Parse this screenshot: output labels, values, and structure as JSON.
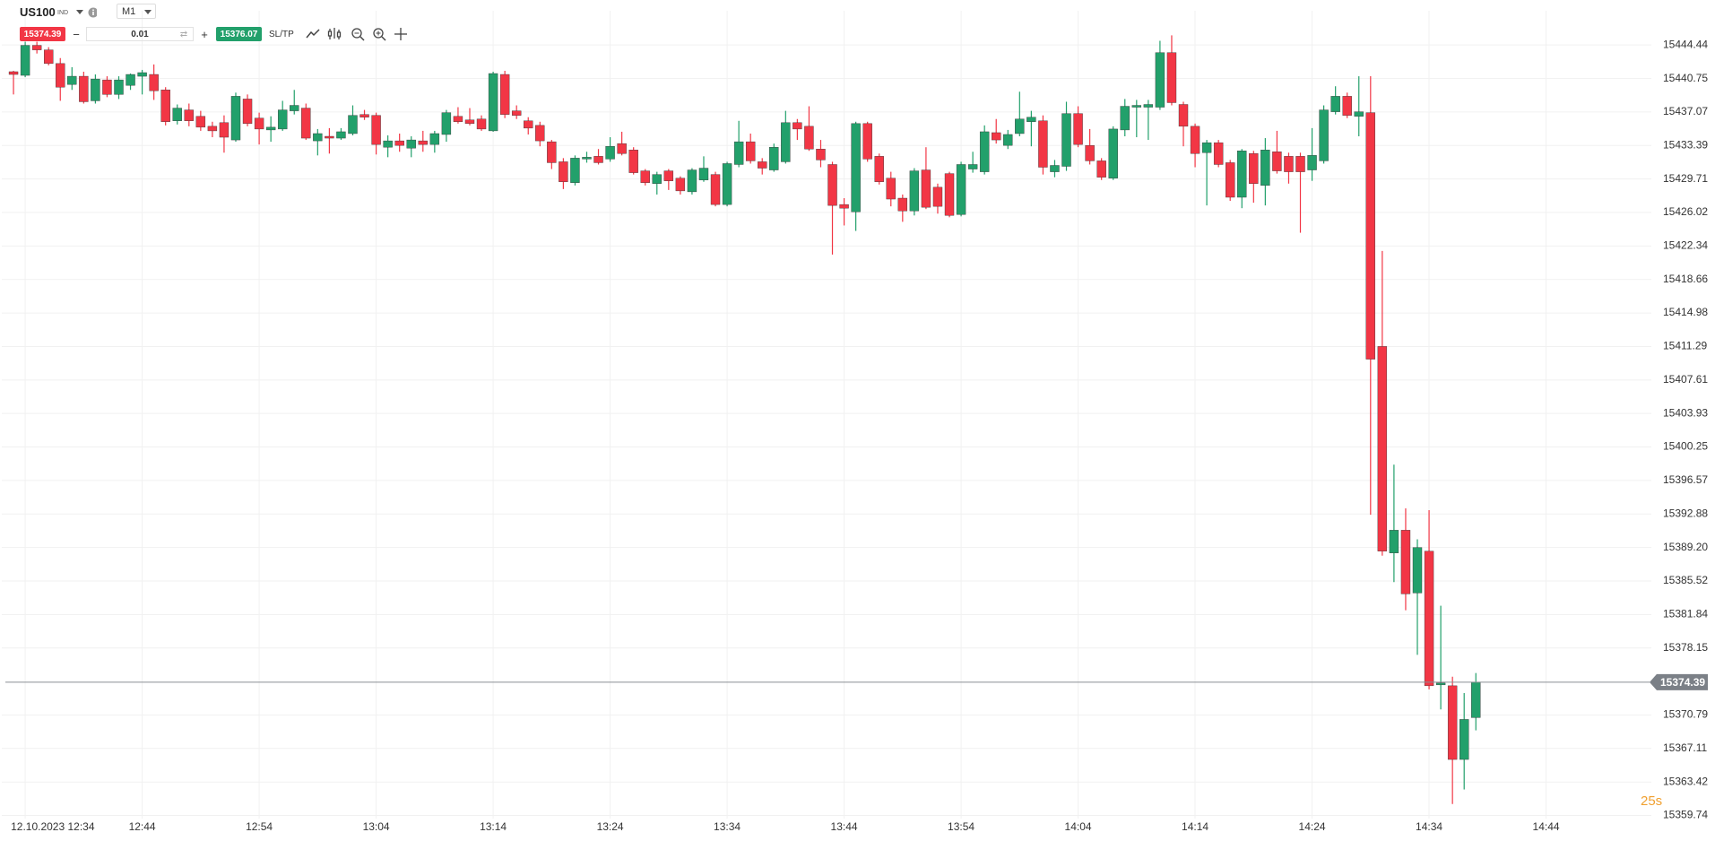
{
  "toolbar": {
    "symbol": "US100",
    "symbol_type": "IND",
    "timeframe": "M1",
    "sell_price": "15374.39",
    "volume": "0.01",
    "buy_price": "15376.07",
    "sltp": "SL/TP"
  },
  "chart_data": {
    "type": "candlestick",
    "up_color": "#22a06b",
    "down_color": "#f23645",
    "x": [
      "12:33",
      "12:34",
      "12:35",
      "12:36",
      "12:37",
      "12:38",
      "12:39",
      "12:40",
      "12:41",
      "12:42",
      "12:43",
      "12:44",
      "12:45",
      "12:46",
      "12:47",
      "12:48",
      "12:49",
      "12:50",
      "12:51",
      "12:52",
      "12:53",
      "12:54",
      "12:55",
      "12:56",
      "12:57",
      "12:58",
      "12:59",
      "13:00",
      "13:01",
      "13:02",
      "13:03",
      "13:04",
      "13:05",
      "13:06",
      "13:07",
      "13:08",
      "13:09",
      "13:10",
      "13:11",
      "13:12",
      "13:13",
      "13:14",
      "13:15",
      "13:16",
      "13:17",
      "13:18",
      "13:19",
      "13:20",
      "13:21",
      "13:22",
      "13:23",
      "13:24",
      "13:25",
      "13:26",
      "13:27",
      "13:28",
      "13:29",
      "13:30",
      "13:31",
      "13:32",
      "13:33",
      "13:34",
      "13:35",
      "13:36",
      "13:37",
      "13:38",
      "13:39",
      "13:40",
      "13:41",
      "13:42",
      "13:43",
      "13:44",
      "13:45",
      "13:46",
      "13:47",
      "13:48",
      "13:49",
      "13:50",
      "13:51",
      "13:52",
      "13:53",
      "13:54",
      "13:55",
      "13:56",
      "13:57",
      "13:58",
      "13:59",
      "14:00",
      "14:01",
      "14:02",
      "14:03",
      "14:04",
      "14:05",
      "14:06",
      "14:07",
      "14:08",
      "14:09",
      "14:10",
      "14:11",
      "14:12",
      "14:13",
      "14:14",
      "14:15",
      "14:16",
      "14:17",
      "14:18",
      "14:19",
      "14:20",
      "14:21",
      "14:22",
      "14:23",
      "14:24",
      "14:25",
      "14:26",
      "14:27",
      "14:28",
      "14:29",
      "14:30",
      "14:31",
      "14:32",
      "14:33",
      "14:34",
      "14:35",
      "14:36",
      "14:37",
      "14:38"
    ],
    "open": [
      15441.5,
      15441.1,
      15444.4,
      15443.9,
      15442.4,
      15440.1,
      15441,
      15438.3,
      15440.6,
      15439,
      15440,
      15441,
      15441.2,
      15439.5,
      15436.1,
      15437.3,
      15436.6,
      15435.5,
      15435.9,
      15434,
      15438.5,
      15436.4,
      15435.1,
      15435.2,
      15437.2,
      15437.5,
      15433.9,
      15434.4,
      15434.2,
      15434.7,
      15436.8,
      15436.7,
      15433.2,
      15433.9,
      15433.1,
      15433.9,
      15433.5,
      15434.6,
      15436.6,
      15436.2,
      15436.3,
      15435,
      15441.2,
      15437.2,
      15436.1,
      15435.6,
      15433.8,
      15431.6,
      15429.3,
      15431.9,
      15432.2,
      15431.9,
      15433.6,
      15432.9,
      15430.6,
      15429.2,
      15430.6,
      15429.8,
      15428.3,
      15429.6,
      15430.2,
      15426.9,
      15431.3,
      15433.8,
      15431.6,
      15430.7,
      15431.6,
      15435.9,
      15435.5,
      15433,
      15431.3,
      15426.9,
      15426.1,
      15435.8,
      15432.2,
      15429.8,
      15427.6,
      15426.2,
      15430.7,
      15428.8,
      15430.3,
      15425.8,
      15430.8,
      15430.5,
      15434.8,
      15433.4,
      15434.7,
      15436,
      15436.1,
      15430.5,
      15431.1,
      15436.9,
      15433.4,
      15431.7,
      15429.8,
      15435.1,
      15437.6,
      15437.6,
      15437.6,
      15443.6,
      15437.9,
      15435.5,
      15432.6,
      15433.7,
      15431.5,
      15427.7,
      15432.5,
      15429,
      15432.7,
      15432.2,
      15432.2,
      15430.7,
      15431.7,
      15437.1,
      15438.8,
      15436.6,
      15437,
      15411.3,
      15388.6,
      15391.1,
      15384.2,
      15388.8,
      15374.1,
      15374,
      15365.9,
      15370.5
    ],
    "high": [
      15441.6,
      15444.8,
      15444.8,
      15444.2,
      15443,
      15442,
      15441.5,
      15441.2,
      15441,
      15441,
      15441.3,
      15441.7,
      15442.3,
      15439.8,
      15437.9,
      15438,
      15437.2,
      15436,
      15436.7,
      15439.2,
      15439,
      15437,
      15436.6,
      15438.3,
      15439.5,
      15438,
      15435.2,
      15435.3,
      15435.3,
      15437.8,
      15437.3,
      15437,
      15434.5,
      15434.7,
      15434.4,
      15435,
      15435,
      15437.3,
      15437.6,
      15437.5,
      15436.7,
      15441.5,
      15441.6,
      15437.8,
      15436.5,
      15436,
      15434,
      15432,
      15432.3,
      15432.7,
      15433,
      15434.3,
      15434.9,
      15433.2,
      15430.8,
      15430.5,
      15430.8,
      15430,
      15430.9,
      15432.2,
      15430.5,
      15431.6,
      15436.1,
      15434.7,
      15432,
      15433.6,
      15437.2,
      15436.3,
      15437.7,
      15434,
      15431.6,
      15427.6,
      15436,
      15436,
      15432.5,
      15430.5,
      15428,
      15430.9,
      15433.2,
      15429.2,
      15430.5,
      15431.6,
      15432.7,
      15435.6,
      15436.3,
      15435.1,
      15439.3,
      15437.2,
      15436.7,
      15431.8,
      15438.2,
      15437.7,
      15435.2,
      15432,
      15435.5,
      15438.5,
      15438.4,
      15438.4,
      15444.9,
      15445.5,
      15438.2,
      15435.8,
      15434,
      15434,
      15431.8,
      15433,
      15432.8,
      15434.2,
      15435,
      15432.6,
      15432.6,
      15435.3,
      15437.8,
      15439.9,
      15439.2,
      15441,
      15441,
      15421.8,
      15398.3,
      15393.5,
      15390.1,
      15393.3,
      15382.8,
      15375,
      15373.2,
      15375.4
    ],
    "low": [
      15439,
      15440.9,
      15443.5,
      15442.2,
      15438.3,
      15439.5,
      15438,
      15438,
      15438.7,
      15438.5,
      15439.5,
      15439,
      15438.4,
      15435.6,
      15435.7,
      15435.5,
      15435,
      15434.3,
      15432.6,
      15433.8,
      15435.5,
      15433.5,
      15433.8,
      15435,
      15436.8,
      15434,
      15432.3,
      15432.5,
      15434,
      15434.5,
      15436.2,
      15432.4,
      15432.1,
      15432.7,
      15432.1,
      15432.7,
      15432.6,
      15433.8,
      15435.8,
      15435.6,
      15435,
      15434.9,
      15436.4,
      15436.3,
      15434.6,
      15433.3,
      15430.8,
      15428.6,
      15429,
      15431.5,
      15431.3,
      15431.6,
      15432.3,
      15430.2,
      15429,
      15428,
      15428.5,
      15428,
      15428,
      15429.4,
      15426.7,
      15426.7,
      15431,
      15431.4,
      15430.2,
      15430.5,
      15431.4,
      15434,
      15432.8,
      15431,
      15421.4,
      15424.6,
      15424,
      15431.6,
      15429.1,
      15426.7,
      15425,
      15425.7,
      15426.4,
      15425.9,
      15425.5,
      15425.6,
      15430.4,
      15430.2,
      15433.6,
      15433,
      15434.4,
      15433.3,
      15430.2,
      15429.9,
      15430.6,
      15433.2,
      15431.3,
      15429.6,
      15429.6,
      15434.4,
      15434.3,
      15434,
      15437.3,
      15437.8,
      15433.3,
      15431,
      15426.8,
      15431,
      15427.3,
      15426.5,
      15427.1,
      15426.8,
      15430.3,
      15429.2,
      15423.8,
      15429.5,
      15431.4,
      15436.8,
      15436.4,
      15434.4,
      15392.8,
      15388.3,
      15385.4,
      15382.3,
      15377.4,
      15373.6,
      15371.4,
      15361,
      15362.6,
      15369.1
    ],
    "close": [
      15441.2,
      15444.4,
      15443.9,
      15442.4,
      15439.8,
      15441,
      15438.2,
      15440.7,
      15439,
      15440.6,
      15441.2,
      15441.4,
      15439.4,
      15436,
      15437.5,
      15436.1,
      15435.4,
      15435,
      15434.3,
      15438.8,
      15435.8,
      15435.2,
      15435.4,
      15437.3,
      15437.8,
      15434.2,
      15434.7,
      15434.2,
      15434.9,
      15436.7,
      15436.5,
      15433.5,
      15433.9,
      15433.4,
      15434,
      15433.5,
      15434.7,
      15437,
      15436,
      15435.8,
      15435.2,
      15441.3,
      15436.8,
      15436.7,
      15435.3,
      15433.9,
      15431.5,
      15429.4,
      15432,
      15432.1,
      15431.5,
      15433.3,
      15432.5,
      15430.4,
      15429.3,
      15430.2,
      15429.5,
      15428.4,
      15430.7,
      15430.9,
      15426.9,
      15431.4,
      15433.8,
      15431.7,
      15430.9,
      15433.2,
      15435.9,
      15435.2,
      15433,
      15431.8,
      15426.8,
      15426.5,
      15435.8,
      15431.9,
      15429.4,
      15427.5,
      15426.2,
      15430.6,
      15426.6,
      15426.7,
      15425.7,
      15431.3,
      15431.3,
      15434.9,
      15434,
      15434.6,
      15436.3,
      15436.5,
      15431,
      15431.2,
      15436.9,
      15433.5,
      15431.7,
      15429.9,
      15435.2,
      15437.7,
      15437.8,
      15437.9,
      15443.6,
      15438.1,
      15435.5,
      15432.5,
      15433.7,
      15431.3,
      15427.7,
      15432.8,
      15429.2,
      15432.9,
      15430.6,
      15430.5,
      15430.5,
      15432.3,
      15437.3,
      15438.8,
      15436.7,
      15437.1,
      15409.9,
      15388.8,
      15391.1,
      15384.1,
      15389.2,
      15374,
      15374.3,
      15365.9,
      15370.3,
      15374.39
    ],
    "xlim": [
      "12:32",
      "14:53"
    ],
    "xticks": [
      {
        "value": "12:34",
        "label": "12.10.2023 12:34"
      },
      "12:44",
      "12:54",
      "13:04",
      "13:14",
      "13:24",
      "13:34",
      "13:44",
      "13:54",
      "14:04",
      "14:14",
      "14:24",
      "14:34",
      "14:44"
    ],
    "ylim": [
      15359.4,
      15448.2
    ],
    "yticks": [
      15444.44,
      15440.75,
      15437.07,
      15433.39,
      15429.71,
      15426.02,
      15422.34,
      15418.66,
      15414.98,
      15411.29,
      15407.61,
      15403.93,
      15400.25,
      15396.57,
      15392.88,
      {
        "value": 15389.2,
        "label": "15389.20"
      },
      15385.52,
      15381.84,
      15378.15,
      15370.79,
      15367.11,
      15363.42,
      15359.74
    ],
    "grid": true,
    "last_price": 15374.39,
    "last_price_color": "#7b8087",
    "countdown": "25s"
  }
}
